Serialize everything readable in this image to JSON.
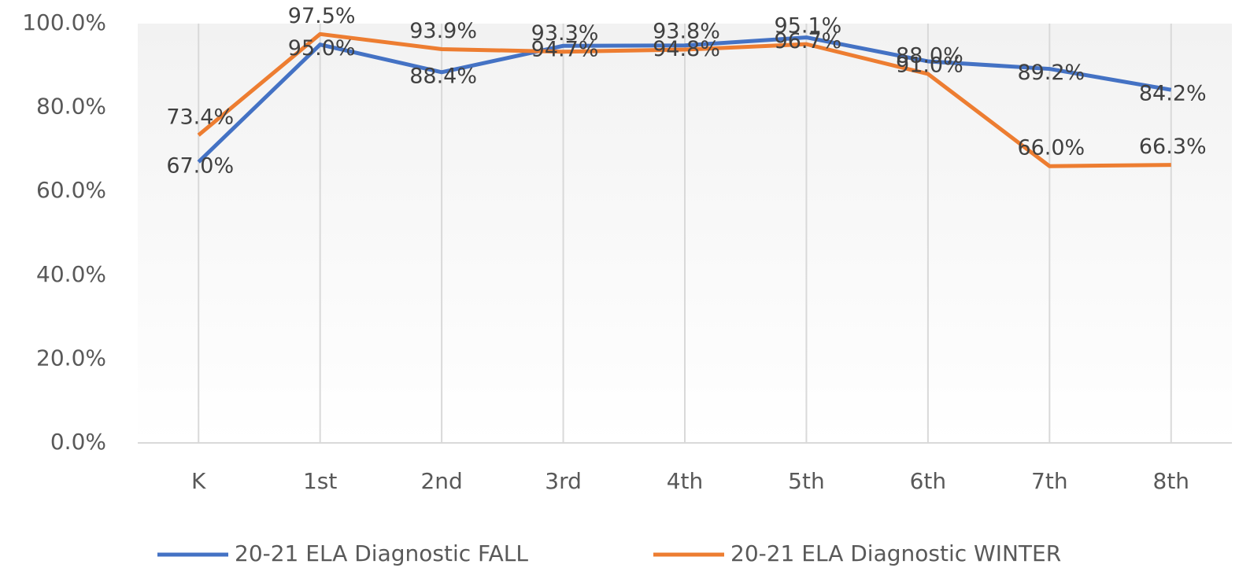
{
  "chart_data": {
    "type": "line",
    "categories": [
      "K",
      "1st",
      "2nd",
      "3rd",
      "4th",
      "5th",
      "6th",
      "7th",
      "8th"
    ],
    "series": [
      {
        "name": "20-21 ELA Diagnostic FALL",
        "color": "#4472c4",
        "values": [
          67.0,
          95.0,
          88.4,
          94.7,
          94.8,
          96.7,
          91.0,
          89.2,
          84.2
        ],
        "value_labels": [
          "67.0%",
          "95.0%",
          "88.4%",
          "94.7%",
          "94.8%",
          "96.7%",
          "91.0%",
          "89.2%",
          "84.2%"
        ]
      },
      {
        "name": "20-21 ELA Diagnostic WINTER",
        "color": "#ed7d31",
        "values": [
          73.4,
          97.5,
          93.9,
          93.3,
          93.8,
          95.1,
          88.0,
          66.0,
          66.3
        ],
        "value_labels": [
          "73.4%",
          "97.5%",
          "93.9%",
          "93.3%",
          "93.8%",
          "95.1%",
          "88.0%",
          "66.0%",
          "66.3%"
        ]
      }
    ],
    "ylim": [
      0,
      100
    ],
    "yticks": [
      {
        "value": 0,
        "label": "0.0%"
      },
      {
        "value": 20,
        "label": "20.0%"
      },
      {
        "value": 40,
        "label": "40.0%"
      },
      {
        "value": 60,
        "label": "60.0%"
      },
      {
        "value": 80,
        "label": "80.0%"
      },
      {
        "value": 100,
        "label": "100.0%"
      }
    ],
    "legend": "bottom"
  }
}
